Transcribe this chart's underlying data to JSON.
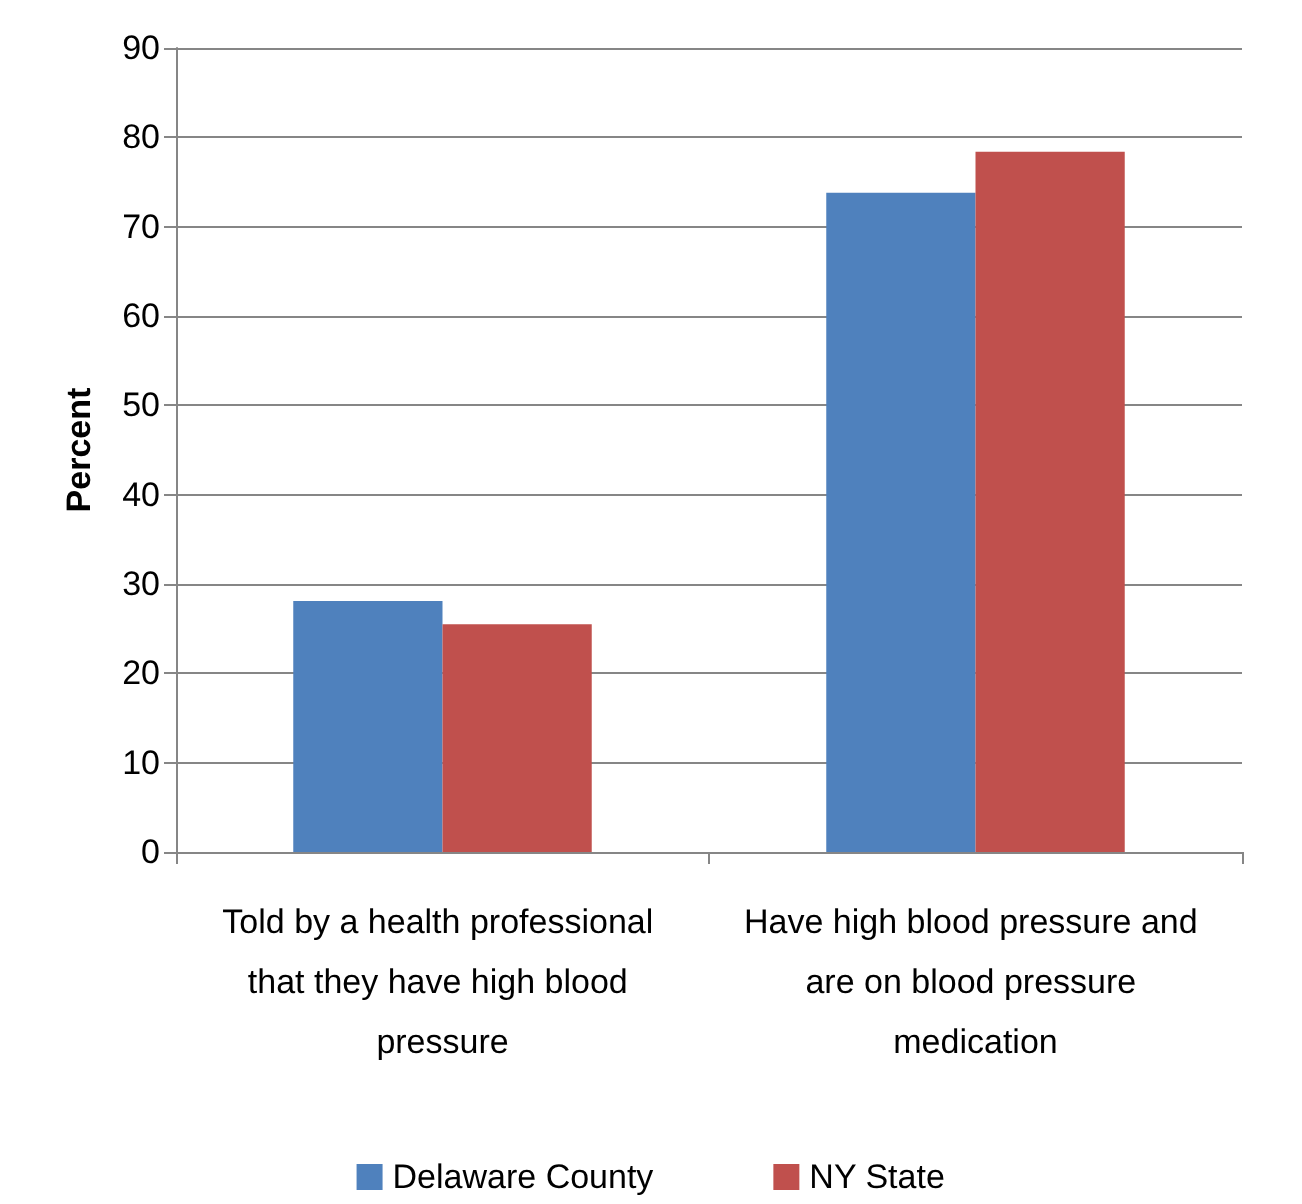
{
  "chart_data": {
    "type": "bar",
    "ylabel": "Percent",
    "categories": [
      "Told by a health professional that they have high blood pressure",
      "Have high blood pressure and are on blood pressure medication"
    ],
    "series": [
      {
        "name": "Delaware County",
        "color": "#4f81bd",
        "values": [
          28.1,
          73.8
        ]
      },
      {
        "name": "NY State",
        "color": "#c0504d",
        "values": [
          25.5,
          78.4
        ]
      }
    ],
    "ylim": [
      0,
      90
    ],
    "yticks": [
      0,
      10,
      20,
      30,
      40,
      50,
      60,
      70,
      80,
      90
    ],
    "grid": "y",
    "legend": "bottom"
  }
}
